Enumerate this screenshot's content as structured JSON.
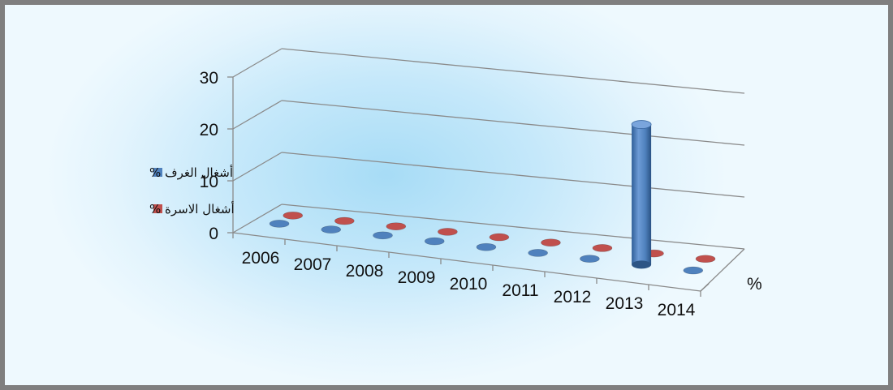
{
  "chart_data": {
    "type": "bar",
    "style": "3d-column",
    "categories": [
      "2006",
      "2007",
      "2008",
      "2009",
      "2010",
      "2011",
      "2012",
      "2013",
      "2014"
    ],
    "depth_label": "%",
    "series": [
      {
        "name": "أشغال الغرف %",
        "color": "#4f81bd",
        "values": [
          0,
          0,
          0,
          0,
          0,
          0,
          0,
          27,
          0
        ]
      },
      {
        "name": "أشغال الاسرة %",
        "color": "#c0504d",
        "values": [
          0,
          0,
          0,
          0,
          0,
          0,
          0,
          0,
          0
        ]
      }
    ],
    "y_ticks": [
      "0",
      "10",
      "20",
      "30"
    ],
    "ylim": [
      0,
      30
    ],
    "grid": true,
    "legend": "left"
  }
}
